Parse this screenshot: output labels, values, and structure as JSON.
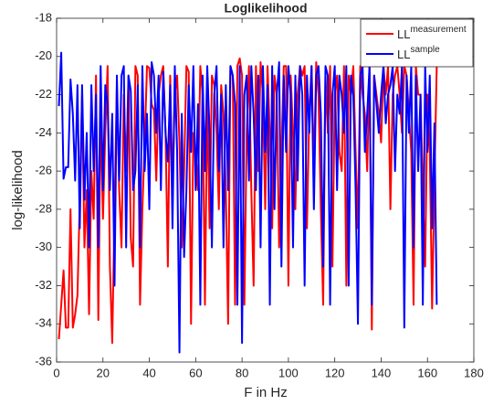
{
  "chart_data": {
    "type": "line",
    "title": "Loglikelihood",
    "x_label": "F in Hz",
    "y_label": "log-likelihood",
    "x": [
      1,
      2,
      3,
      4,
      5,
      6,
      7,
      8,
      9,
      10,
      11,
      12,
      13,
      14,
      15,
      16,
      17,
      18,
      19,
      20,
      21,
      22,
      23,
      24,
      25,
      26,
      27,
      28,
      29,
      30,
      31,
      32,
      33,
      34,
      35,
      36,
      37,
      38,
      39,
      40,
      41,
      42,
      43,
      44,
      45,
      46,
      47,
      48,
      49,
      50,
      51,
      52,
      53,
      54,
      55,
      56,
      57,
      58,
      59,
      60,
      61,
      62,
      63,
      64,
      65,
      66,
      67,
      68,
      69,
      70,
      71,
      72,
      73,
      74,
      75,
      76,
      77,
      78,
      79,
      80,
      81,
      82,
      83,
      84,
      85,
      86,
      87,
      88,
      89,
      90,
      91,
      92,
      93,
      94,
      95,
      96,
      97,
      98,
      99,
      100,
      101,
      102,
      103,
      104,
      105,
      106,
      107,
      108,
      109,
      110,
      111,
      112,
      113,
      114,
      115,
      116,
      117,
      118,
      119,
      120,
      121,
      122,
      123,
      124,
      125,
      126,
      127,
      128,
      129,
      130,
      131,
      132,
      133,
      134,
      135,
      136,
      137,
      138,
      139,
      140,
      141,
      142,
      143,
      144,
      145,
      146,
      147,
      148,
      149,
      150,
      151,
      152,
      153,
      154,
      155,
      156,
      157,
      158,
      159,
      160,
      161,
      162,
      163,
      164
    ],
    "series": [
      {
        "name": "LL",
        "superscript": "measurement",
        "color": "#ff0000",
        "values": [
          -34.8,
          -33,
          -31.2,
          -34.2,
          -34.2,
          -28,
          -34.2,
          -33.5,
          -32.5,
          -27.5,
          -22,
          -30,
          -27,
          -33.5,
          -26,
          -28.5,
          -21,
          -33.8,
          -22.8,
          -28.5,
          -24,
          -20.5,
          -31,
          -35,
          -28,
          -21.5,
          -27,
          -30,
          -22,
          -26,
          -21,
          -29.5,
          -31,
          -20.5,
          -21,
          -33,
          -28,
          -24.5,
          -20.5,
          -20.6,
          -22.5,
          -22.8,
          -26.5,
          -22,
          -21,
          -20.5,
          -24,
          -31,
          -21,
          -27,
          -22,
          -21,
          -24.5,
          -30,
          -26,
          -20.5,
          -20.8,
          -34,
          -24,
          -25,
          -27,
          -20.5,
          -22,
          -33,
          -22,
          -29,
          -21,
          -21.5,
          -24,
          -28,
          -21.5,
          -23,
          -27,
          -34,
          -20.5,
          -21,
          -33,
          -20.5,
          -20.1,
          -21,
          -33,
          -24,
          -20.5,
          -27,
          -32,
          -20.5,
          -26,
          -20.3,
          -22,
          -28,
          -20.5,
          -24,
          -29,
          -21,
          -22,
          -30,
          -25,
          -20.5,
          -20.5,
          -32,
          -21,
          -24,
          -28,
          -22,
          -20.5,
          -21,
          -20.5,
          -29,
          -23,
          -20.5,
          -26,
          -20.3,
          -22,
          -28,
          -33,
          -21,
          -24,
          -20.5,
          -31,
          -22,
          -21,
          -25,
          -26,
          -20.5,
          -32,
          -21,
          -22,
          -20.5,
          -25,
          -29,
          -20.5,
          -22,
          -23,
          -26,
          -20.5,
          -34.3,
          -21,
          -22,
          -23,
          -24.5,
          -20.5,
          -22,
          -20.5,
          -28,
          -22,
          -21,
          -20.5,
          -22,
          -24,
          -20.5,
          -21,
          -23,
          -25,
          -33,
          -20.5,
          -22,
          -22,
          -27,
          -31,
          -22,
          -25,
          -33.2,
          -26.5,
          -20.5
        ]
      },
      {
        "name": "LL",
        "superscript": "sample",
        "color": "#0000ff",
        "values": [
          -22.6,
          -19.8,
          -26.4,
          -25.8,
          -25.8,
          -21.2,
          -23,
          -26.5,
          -21.5,
          -29,
          -21.5,
          -27.5,
          -24,
          -30,
          -21.5,
          -26,
          -22,
          -30,
          -20.5,
          -27,
          -21.5,
          -22.5,
          -27,
          -23,
          -32,
          -21,
          -26.5,
          -21,
          -20.5,
          -30,
          -21,
          -21.8,
          -27,
          -26,
          -21.5,
          -30,
          -20.5,
          -26,
          -23,
          -28,
          -20.3,
          -21,
          -24,
          -21,
          -27,
          -20.8,
          -24,
          -25.5,
          -21.5,
          -29,
          -20.5,
          -25,
          -35.5,
          -23,
          -30.5,
          -27,
          -21.5,
          -25,
          -20.5,
          -27,
          -22.5,
          -33,
          -21,
          -26,
          -20.5,
          -24,
          -30,
          -22,
          -20.5,
          -26,
          -22,
          -30,
          -21.5,
          -27,
          -20.5,
          -21,
          -22.5,
          -33,
          -20.5,
          -35,
          -22,
          -21,
          -26.5,
          -20.5,
          -23,
          -27,
          -21,
          -30,
          -20.5,
          -25,
          -21.5,
          -33,
          -20.5,
          -28,
          -22,
          -20.3,
          -31,
          -21,
          -25,
          -20.5,
          -22,
          -30,
          -21,
          -26.5,
          -20.5,
          -22,
          -32,
          -21,
          -24,
          -20.5,
          -28,
          -21,
          -20.5,
          -23,
          -31,
          -20.5,
          -21,
          -33,
          -22,
          -20.5,
          -27,
          -21,
          -22,
          -24,
          -20.5,
          -32,
          -21,
          -22,
          -27,
          -34,
          -21,
          -20.5,
          -25,
          -23,
          -20.5,
          -33,
          -21,
          -22.5,
          -24,
          -22,
          -20.5,
          -23.5,
          -22,
          -21.5,
          -20.5,
          -26,
          -22,
          -23,
          -20.5,
          -34.2,
          -21,
          -24,
          -20.5,
          -30,
          -21,
          -26,
          -22,
          -33,
          -20.5,
          -25,
          -21,
          -29,
          -23.5,
          -33
        ]
      }
    ],
    "xlim": [
      0,
      180
    ],
    "xticks": [
      0,
      20,
      40,
      60,
      80,
      100,
      120,
      140,
      160,
      180
    ],
    "ylim": [
      -36,
      -18
    ],
    "yticks": [
      -36,
      -34,
      -32,
      -30,
      -28,
      -26,
      -24,
      -22,
      -20,
      -18
    ],
    "legend": "top-right",
    "grid": false
  }
}
